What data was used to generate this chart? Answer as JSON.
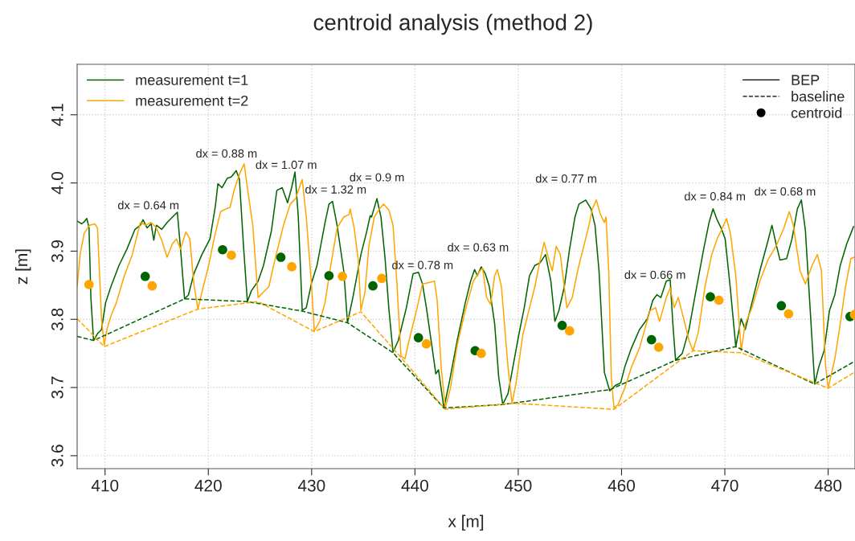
{
  "chart_data": {
    "type": "line",
    "title": "centroid analysis (method 2)",
    "xlabel": "x [m]",
    "ylabel": "z [m]",
    "xlim": [
      407.3,
      482.6
    ],
    "xticks": [
      410,
      420,
      430,
      440,
      450,
      460,
      470,
      480
    ],
    "ylim": [
      3.581,
      4.174
    ],
    "yticks": [
      3.6,
      3.7,
      3.8,
      3.9,
      {
        "value": 4.0,
        "label": "4.0"
      },
      4.1
    ],
    "grid": true,
    "legend": "top left",
    "series": [
      {
        "name": "measurement t=1",
        "line_style": "solid",
        "color": "#006400",
        "x": [
          407.33,
          407.72,
          407.98,
          408.24,
          408.45,
          408.63,
          408.89,
          409.27,
          409.66,
          410.05,
          410.57,
          411.35,
          412.12,
          412.9,
          413.42,
          413.68,
          414.07,
          414.46,
          414.72,
          414.97,
          415.49,
          416.01,
          416.53,
          417.0,
          417.31,
          417.7,
          418.08,
          418.6,
          419.38,
          420.16,
          420.67,
          420.93,
          421.32,
          421.84,
          422.23,
          422.7,
          423.01,
          423.39,
          423.78,
          424.17,
          424.82,
          425.34,
          426.11,
          426.63,
          427.15,
          427.67,
          428.06,
          428.39,
          428.71,
          429.09,
          429.48,
          430.0,
          430.52,
          431.3,
          431.68,
          432.02,
          432.46,
          433.11,
          433.47,
          433.99,
          434.77,
          435.29,
          435.67,
          435.8,
          436.32,
          436.71,
          437.1,
          437.49,
          437.88,
          438.39,
          439.17,
          439.82,
          440.34,
          440.73,
          441.11,
          441.63,
          442.02,
          442.28,
          442.8,
          443.32,
          444.09,
          444.87,
          445.39,
          445.78,
          446.04,
          446.42,
          446.81,
          447.2,
          447.72,
          448.11,
          448.5,
          449.01,
          449.53,
          450.05,
          450.57,
          451.09,
          451.61,
          452.12,
          452.64,
          453.16,
          453.55,
          453.94,
          454.46,
          454.97,
          455.49,
          455.88,
          456.53,
          457.05,
          457.43,
          457.82,
          458.34,
          458.86,
          459.4,
          459.92,
          460.31,
          460.96,
          461.74,
          462.51,
          463.03,
          463.42,
          463.81,
          464.33,
          464.71,
          464.97,
          465.23,
          465.88,
          466.53,
          467.18,
          467.95,
          468.47,
          468.86,
          469.25,
          469.64,
          470.03,
          470.54,
          471.06,
          471.58,
          471.97,
          472.62,
          473.39,
          474.17,
          474.56,
          474.95,
          475.34,
          475.98,
          476.5,
          477.02,
          477.41,
          477.8,
          478.19,
          478.7,
          479.09,
          479.61,
          480.13,
          480.65,
          481.17,
          481.81,
          482.46
        ],
        "values": [
          3.944,
          3.94,
          3.943,
          3.948,
          3.934,
          3.832,
          3.769,
          3.779,
          3.785,
          3.824,
          3.848,
          3.879,
          3.903,
          3.932,
          3.938,
          3.946,
          3.934,
          3.94,
          3.916,
          3.938,
          3.932,
          3.942,
          3.95,
          3.957,
          3.903,
          3.83,
          3.836,
          3.867,
          3.895,
          3.918,
          3.965,
          3.999,
          3.993,
          4.007,
          4.009,
          4.018,
          4.005,
          3.911,
          3.826,
          3.842,
          3.856,
          3.879,
          3.93,
          3.989,
          3.993,
          3.971,
          3.993,
          4.016,
          3.95,
          3.813,
          3.817,
          3.854,
          3.879,
          3.942,
          3.969,
          3.973,
          3.938,
          3.871,
          3.795,
          3.832,
          3.895,
          3.926,
          3.952,
          3.95,
          3.977,
          3.95,
          3.891,
          3.813,
          3.752,
          3.769,
          3.817,
          3.867,
          3.869,
          3.852,
          3.817,
          3.762,
          3.72,
          3.726,
          3.67,
          3.707,
          3.769,
          3.824,
          3.856,
          3.873,
          3.864,
          3.877,
          3.867,
          3.848,
          3.793,
          3.715,
          3.675,
          3.691,
          3.734,
          3.777,
          3.816,
          3.864,
          3.879,
          3.883,
          3.895,
          3.856,
          3.797,
          3.813,
          3.848,
          3.903,
          3.95,
          3.969,
          3.975,
          3.962,
          3.938,
          3.871,
          3.722,
          3.695,
          3.703,
          3.707,
          3.73,
          3.758,
          3.785,
          3.801,
          3.828,
          3.836,
          3.832,
          3.856,
          3.858,
          3.793,
          3.74,
          3.75,
          3.785,
          3.84,
          3.903,
          3.942,
          3.962,
          3.946,
          3.934,
          3.918,
          3.844,
          3.76,
          3.801,
          3.785,
          3.824,
          3.871,
          3.915,
          3.938,
          3.911,
          3.887,
          3.889,
          3.918,
          3.962,
          3.975,
          3.93,
          3.832,
          3.705,
          3.73,
          3.754,
          3.813,
          3.836,
          3.879,
          3.911,
          3.936
        ]
      },
      {
        "name": "measurement t=2",
        "line_style": "solid",
        "color": "#ffa500",
        "x": [
          407.3,
          407.59,
          407.98,
          408.5,
          409.02,
          409.27,
          409.66,
          409.92,
          410.18,
          410.57,
          411.09,
          411.87,
          412.64,
          413.42,
          413.94,
          414.46,
          414.97,
          415.49,
          416.01,
          416.53,
          416.92,
          417.31,
          417.82,
          418.21,
          418.6,
          418.99,
          419.38,
          420.03,
          420.67,
          421.19,
          421.71,
          422.1,
          422.49,
          423.01,
          423.47,
          423.78,
          424.3,
          424.82,
          425.34,
          425.86,
          426.5,
          427.28,
          427.93,
          428.45,
          429.09,
          429.48,
          430.0,
          430.26,
          430.78,
          431.29,
          431.81,
          432.46,
          433.11,
          433.63,
          433.73,
          434.12,
          434.51,
          434.77,
          435.16,
          435.54,
          436.06,
          436.58,
          436.97,
          437.49,
          437.88,
          438.26,
          438.65,
          439.04,
          439.43,
          440.21,
          440.73,
          441.37,
          441.89,
          442.15,
          442.54,
          442.93,
          443.44,
          444.09,
          444.87,
          445.65,
          446.29,
          446.55,
          446.94,
          447.33,
          447.72,
          447.98,
          448.37,
          449.01,
          449.4,
          449.79,
          450.44,
          450.96,
          451.61,
          452.12,
          452.51,
          452.9,
          453.29,
          453.68,
          454.07,
          454.71,
          455.23,
          455.75,
          456.27,
          456.79,
          457.18,
          457.56,
          457.95,
          458.34,
          458.5,
          458.76,
          459.01,
          459.27,
          459.66,
          460.31,
          460.96,
          461.74,
          462.77,
          463.29,
          463.68,
          464.33,
          464.71,
          465.1,
          465.49,
          466.01,
          466.53,
          466.92,
          467.43,
          468.08,
          468.73,
          469.25,
          469.77,
          470.16,
          470.54,
          471.06,
          471.58,
          471.97,
          472.62,
          473.39,
          474.17,
          474.95,
          475.72,
          476.24,
          476.63,
          477.28,
          477.8,
          478.44,
          478.96,
          479.35,
          479.74,
          480.0,
          480.65,
          481.17,
          481.68,
          482.2,
          482.51
        ],
        "values": [
          3.848,
          3.895,
          3.926,
          3.938,
          3.94,
          3.934,
          3.801,
          3.762,
          3.785,
          3.805,
          3.824,
          3.864,
          3.895,
          3.942,
          3.938,
          3.942,
          3.934,
          3.916,
          3.891,
          3.911,
          3.918,
          3.903,
          3.928,
          3.918,
          3.852,
          3.815,
          3.84,
          3.879,
          3.926,
          3.958,
          3.962,
          3.964,
          3.989,
          4.013,
          4.028,
          3.993,
          3.938,
          3.832,
          3.84,
          3.848,
          3.891,
          3.938,
          3.969,
          3.977,
          4.005,
          3.95,
          3.848,
          3.783,
          3.797,
          3.824,
          3.875,
          3.934,
          3.95,
          3.954,
          3.962,
          3.934,
          3.887,
          3.813,
          3.84,
          3.907,
          3.95,
          3.962,
          3.969,
          3.96,
          3.938,
          3.852,
          3.746,
          3.742,
          3.769,
          3.817,
          3.852,
          3.854,
          3.856,
          3.828,
          3.73,
          3.67,
          3.699,
          3.762,
          3.813,
          3.856,
          3.871,
          3.875,
          3.832,
          3.822,
          3.864,
          3.873,
          3.848,
          3.73,
          3.677,
          3.707,
          3.777,
          3.809,
          3.848,
          3.887,
          3.913,
          3.891,
          3.871,
          3.907,
          3.895,
          3.817,
          3.832,
          3.871,
          3.903,
          3.934,
          3.962,
          3.975,
          3.954,
          3.942,
          3.95,
          3.871,
          3.715,
          3.67,
          3.675,
          3.699,
          3.73,
          3.758,
          3.813,
          3.817,
          3.797,
          3.832,
          3.846,
          3.817,
          3.832,
          3.801,
          3.769,
          3.754,
          3.781,
          3.848,
          3.895,
          3.918,
          3.934,
          3.948,
          3.926,
          3.864,
          3.754,
          3.793,
          3.817,
          3.856,
          3.887,
          3.907,
          3.934,
          3.958,
          3.938,
          3.871,
          3.852,
          3.879,
          3.895,
          3.871,
          3.734,
          3.699,
          3.742,
          3.793,
          3.848,
          3.889,
          3.891
        ]
      },
      {
        "line_style": "dashed",
        "color": "#006400",
        "x": [
          407.3,
          408.89,
          417.7,
          423.78,
          429.09,
          433.47,
          437.88,
          442.8,
          448.5,
          458.89,
          465.23,
          471.06,
          478.7,
          482.51
        ],
        "values": [
          3.775,
          3.769,
          3.83,
          3.826,
          3.812,
          3.795,
          3.751,
          3.67,
          3.675,
          3.697,
          3.74,
          3.76,
          3.705,
          3.738
        ]
      },
      {
        "line_style": "dashed",
        "color": "#ffa500",
        "x": [
          407.3,
          409.92,
          418.99,
          424.82,
          430.26,
          434.77,
          438.65,
          442.93,
          449.4,
          459.27,
          466.92,
          471.58,
          480.0,
          482.51
        ],
        "values": [
          3.801,
          3.76,
          3.815,
          3.826,
          3.782,
          3.811,
          3.744,
          3.668,
          3.677,
          3.668,
          3.754,
          3.751,
          3.699,
          3.722
        ]
      },
      {
        "type": "scatter",
        "marker": "circle",
        "color": "#006400",
        "x": [
          413.89,
          421.38,
          427.02,
          431.68,
          435.93,
          440.34,
          445.83,
          454.25,
          462.9,
          468.6,
          475.47,
          482.12
        ],
        "values": [
          3.863,
          3.902,
          3.891,
          3.864,
          3.849,
          3.773,
          3.754,
          3.791,
          3.77,
          3.833,
          3.82,
          3.804
        ]
      },
      {
        "type": "scatter",
        "marker": "circle",
        "color": "#ffa500",
        "x": [
          408.45,
          414.56,
          422.23,
          428.08,
          432.98,
          436.79,
          441.11,
          446.42,
          454.97,
          463.6,
          469.43,
          476.17,
          482.55
        ],
        "values": [
          3.851,
          3.849,
          3.894,
          3.877,
          3.863,
          3.86,
          3.764,
          3.75,
          3.783,
          3.759,
          3.828,
          3.808,
          3.807
        ]
      }
    ],
    "annotations": [
      "dx = 0.64 m",
      "dx = 0.88 m",
      "dx = 1.07 m",
      "dx = 1.32 m",
      "dx = 0.9 m",
      "dx = 0.78 m",
      "dx = 0.63 m",
      "dx = 0.77 m",
      "dx = 0.66 m",
      "dx = 0.84 m",
      "dx = 0.68 m",
      "BEP",
      "baseline",
      "centroid"
    ]
  }
}
